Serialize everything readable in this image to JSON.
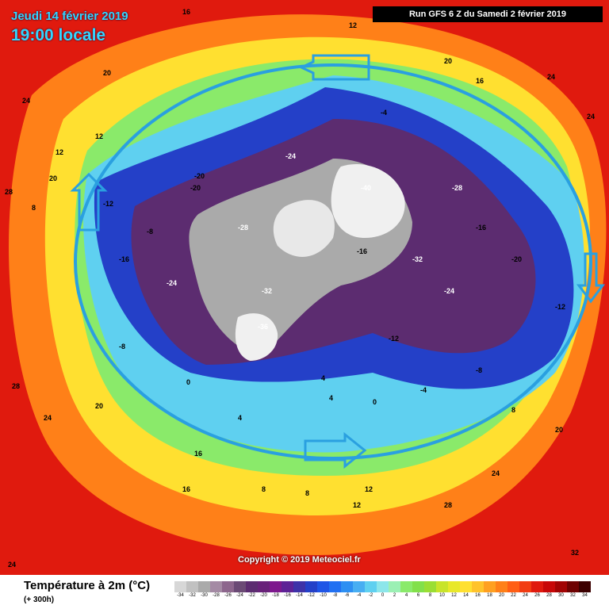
{
  "header": {
    "date": "Jeudi 14 février 2019",
    "time": "19:00 locale",
    "run": "Run GFS 6 Z du Samedi 2 février 2019"
  },
  "footer": {
    "title": "Température à 2m (°C)",
    "subtitle": "(+ 300h)",
    "copyright": "Copyright © 2019 Meteociel.fr"
  },
  "legend": {
    "ticks": [
      "-34",
      "-32",
      "-30",
      "-28",
      "-26",
      "-24",
      "-22",
      "-20",
      "-18",
      "-16",
      "-14",
      "-12",
      "-10",
      "-8",
      "-6",
      "-4",
      "-2",
      "0",
      "2",
      "4",
      "6",
      "8",
      "10",
      "12",
      "14",
      "16",
      "18",
      "20",
      "22",
      "24",
      "26",
      "28",
      "30",
      "32",
      "34"
    ],
    "colors": [
      "#d7d7d7",
      "#c1c1c1",
      "#aaaaaa",
      "#a48aa4",
      "#8d668d",
      "#6b4a75",
      "#5c2c70",
      "#682279",
      "#7d188d",
      "#5e2296",
      "#3e32a8",
      "#2440c8",
      "#1f55e6",
      "#2170f2",
      "#2d8ff2",
      "#47aef2",
      "#5fd0f0",
      "#8ce6ea",
      "#9bf0b4",
      "#8aea6a",
      "#82e04a",
      "#9ade34",
      "#c8e42a",
      "#e8e82a",
      "#ffe030",
      "#ffc32a",
      "#ffa020",
      "#ff8018",
      "#ff5e14",
      "#f23c12",
      "#e01a0e",
      "#c80808",
      "#a20404",
      "#6e0202",
      "#3c0000"
    ]
  },
  "map_labels": [
    {
      "t": "20"
    },
    {
      "t": "24"
    },
    {
      "t": "12"
    },
    {
      "t": "16"
    },
    {
      "t": "24"
    },
    {
      "t": "24"
    },
    {
      "t": "28"
    },
    {
      "t": "20"
    },
    {
      "t": "12"
    },
    {
      "t": "8"
    },
    {
      "t": "-12"
    },
    {
      "t": "-8"
    },
    {
      "t": "-16"
    },
    {
      "t": "-20"
    },
    {
      "t": "-24"
    },
    {
      "t": "-28"
    },
    {
      "t": "-32"
    },
    {
      "t": "-36"
    },
    {
      "t": "-40"
    },
    {
      "t": "-24"
    },
    {
      "t": "-28"
    },
    {
      "t": "-32"
    },
    {
      "t": "-20"
    },
    {
      "t": "-16"
    },
    {
      "t": "-12"
    },
    {
      "t": "-8"
    },
    {
      "t": "-4"
    },
    {
      "t": "0"
    },
    {
      "t": "4"
    },
    {
      "t": "8"
    },
    {
      "t": "12"
    },
    {
      "t": "16"
    },
    {
      "t": "20"
    },
    {
      "t": "24"
    },
    {
      "t": "28"
    },
    {
      "t": "32"
    },
    {
      "t": "20"
    },
    {
      "t": "16"
    },
    {
      "t": "12"
    },
    {
      "t": "8"
    },
    {
      "t": "4"
    },
    {
      "t": "-4"
    },
    {
      "t": "-12"
    },
    {
      "t": "-20"
    },
    {
      "t": "-24"
    },
    {
      "t": "-16"
    },
    {
      "t": "-8"
    },
    {
      "t": "0"
    },
    {
      "t": "4"
    },
    {
      "t": "8"
    },
    {
      "t": "12"
    },
    {
      "t": "16"
    },
    {
      "t": "20"
    },
    {
      "t": "24"
    },
    {
      "t": "28"
    },
    {
      "t": "24"
    }
  ],
  "colors": {
    "warm_outer": "#e01a0e",
    "orange": "#ff8018",
    "yellow": "#ffe030",
    "green": "#8aea6a",
    "cyan": "#5fd0f0",
    "blue": "#2440c8",
    "purple": "#5c2c70",
    "grey": "#aaaaaa",
    "white": "#f0f0f0",
    "ring": "#2aa0e0"
  }
}
